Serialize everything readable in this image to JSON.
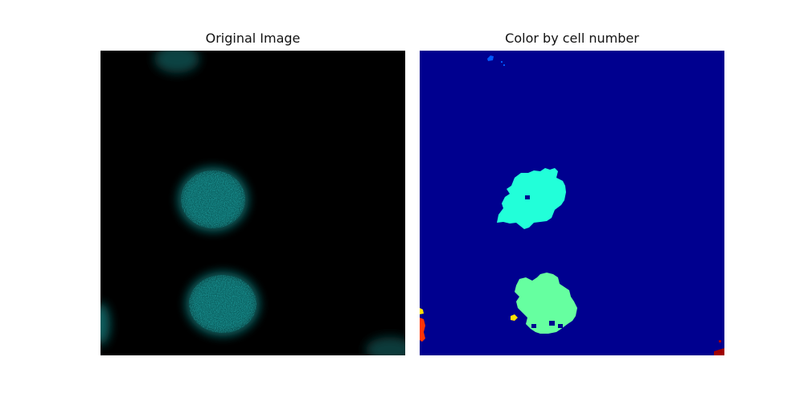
{
  "panels": {
    "left": {
      "title": "Original Image"
    },
    "right": {
      "title": "Color by cell number"
    }
  },
  "colors": {
    "background": "#000000",
    "cell_fluorescence": "#1aa6a6",
    "label_background": "#00008f",
    "label_cyan": "#22ffd9",
    "label_green": "#66ffa0",
    "label_blue": "#0058ff",
    "label_yellow": "#ffe000",
    "label_red": "#ff3300",
    "label_darkred": "#a00000"
  }
}
